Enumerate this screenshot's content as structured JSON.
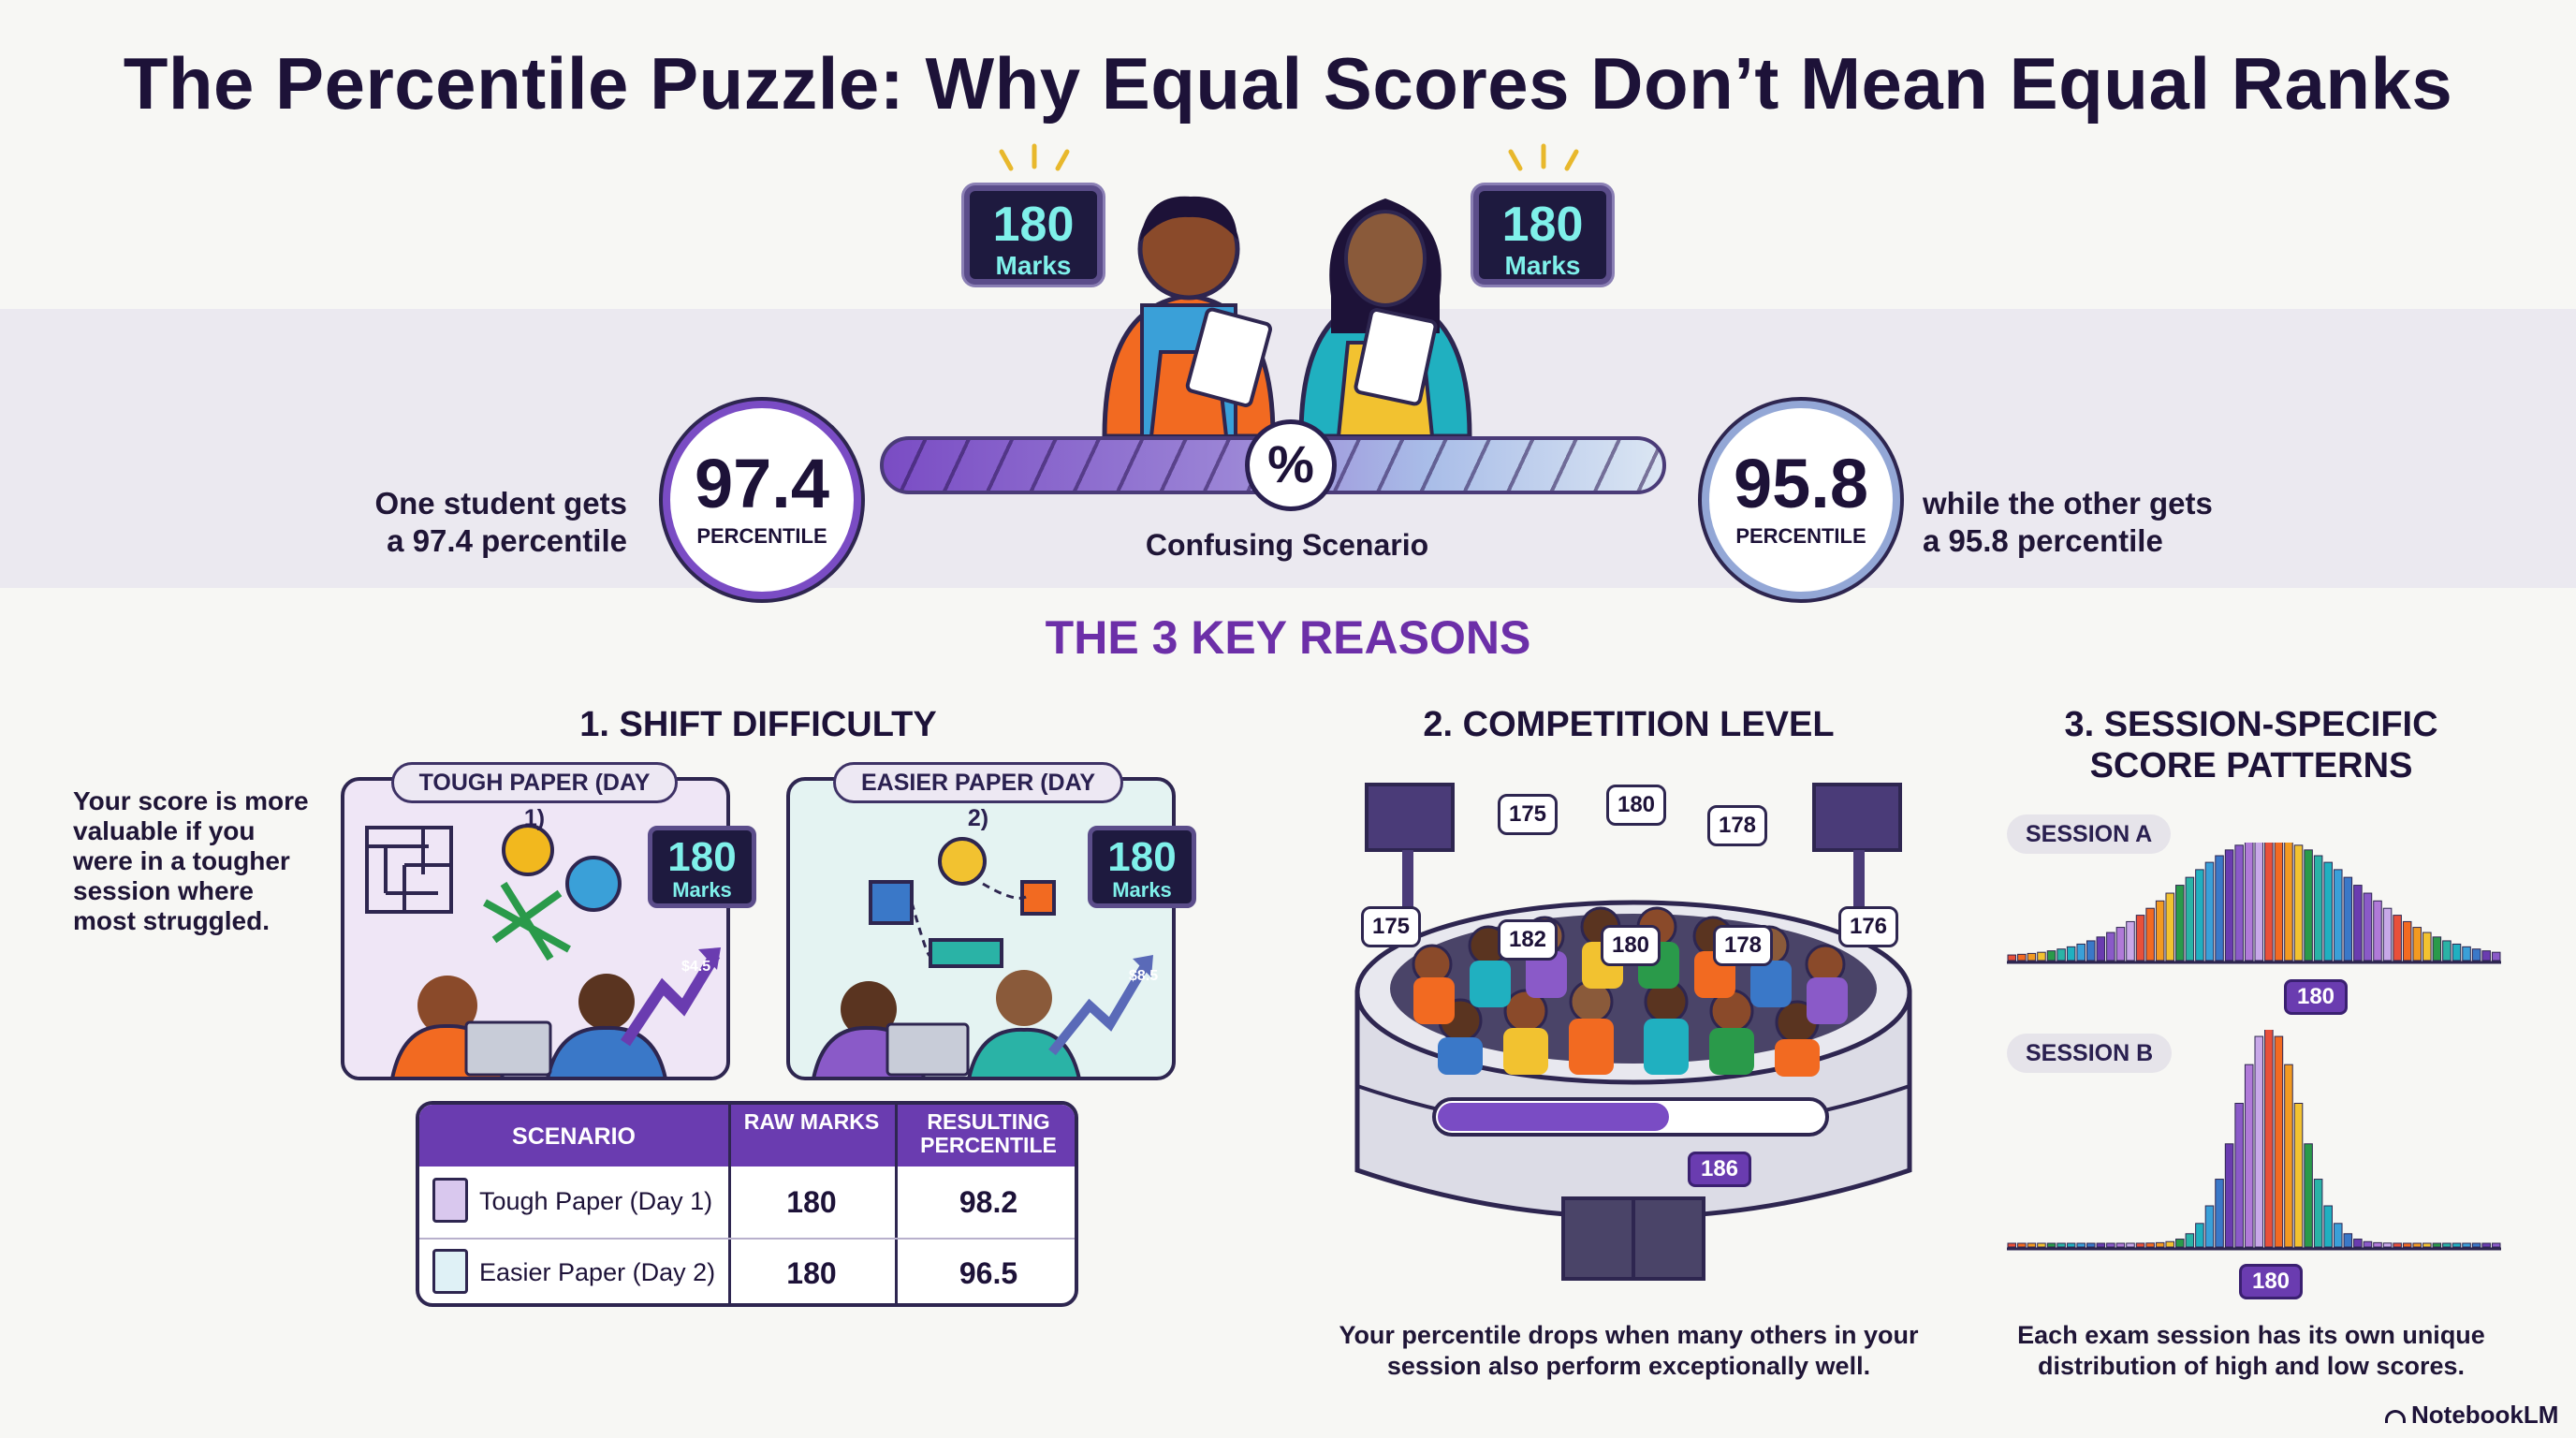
{
  "title": "The Percentile Puzzle: Why Equal Scores Don’t Mean Equal Ranks",
  "hero": {
    "left_badge": {
      "number": "180",
      "label": "Marks"
    },
    "right_badge": {
      "number": "180",
      "label": "Marks"
    },
    "left_circle": {
      "value": "97.4",
      "label": "PERCENTILE"
    },
    "right_circle": {
      "value": "95.8",
      "label": "PERCENTILE"
    },
    "left_text": [
      "One student gets",
      "a 97.4 percentile"
    ],
    "right_text": [
      "while the other gets",
      "a 95.8 percentile"
    ],
    "slider_symbol": "%",
    "slider_caption": "Confusing Scenario"
  },
  "reasons_heading": "THE 3 KEY REASONS",
  "reason1": {
    "title": "1. SHIFT DIFFICULTY",
    "description": [
      "Your score is more",
      "valuable if you",
      "were in a tougher",
      "session where",
      "most struggled."
    ],
    "panel_tough": {
      "label": "TOUGH PAPER (DAY 1)",
      "badge_number": "180",
      "badge_label": "Marks",
      "chart_tag": "$4.5"
    },
    "panel_easy": {
      "label": "EASIER PAPER (DAY 2)",
      "badge_number": "180",
      "badge_label": "Marks",
      "chart_tag": "$8.5"
    },
    "table": {
      "headers": [
        "SCENARIO",
        "RAW MARKS",
        "RESULTING PERCENTILE"
      ],
      "rows": [
        {
          "scenario": "Tough Paper (Day 1)",
          "marks": "180",
          "percentile": "98.2"
        },
        {
          "scenario": "Easier Paper (Day 2)",
          "marks": "180",
          "percentile": "96.5"
        }
      ]
    }
  },
  "reason2": {
    "title": "2. COMPETITION LEVEL",
    "bubbles": [
      "175",
      "180",
      "178",
      "175",
      "182",
      "180",
      "178",
      "176"
    ],
    "progress_tag": "186",
    "progress_fill": 0.6,
    "caption": [
      "Your percentile drops when many others in your",
      "session also perform exceptionally well."
    ]
  },
  "reason3": {
    "title": [
      "3. SESSION-SPECIFIC",
      "SCORE PATTERNS"
    ],
    "session_a": {
      "label": "SESSION A",
      "tag": "180"
    },
    "session_b": {
      "label": "SESSION B",
      "tag": "180"
    },
    "caption": [
      "Each exam session has its own unique",
      "distribution of high and low scores."
    ]
  },
  "footer": {
    "brand": "NotebookLM"
  },
  "colors": {
    "accent": "#6a3cb0",
    "dark": "#1d1238",
    "teal": "#7ff0ea"
  }
}
